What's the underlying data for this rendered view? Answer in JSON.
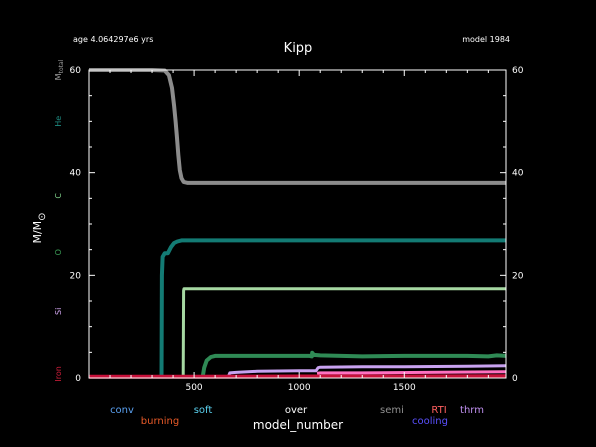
{
  "header": {
    "age_label": "age 4.064297e6 yrs",
    "model_label": "model 1984"
  },
  "chart_data": {
    "type": "line",
    "title": "Kipp",
    "xlabel": "model_number",
    "ylabel": "M/M",
    "ylabel_symbol": "⊙",
    "xlim": [
      0,
      1984
    ],
    "ylim": [
      0,
      60
    ],
    "x_ticks": [
      500,
      1000,
      1500
    ],
    "y_ticks": [
      0,
      20,
      40,
      60
    ],
    "grid": false,
    "left_markers": [
      {
        "text": "M",
        "sub": "total",
        "y": 60,
        "color": "#a0a0a0"
      },
      {
        "text": "He",
        "y": 50,
        "color": "#1e8a80"
      },
      {
        "text": "C",
        "y": 35.5,
        "color": "#7fd08a"
      },
      {
        "text": "O",
        "y": 24.5,
        "color": "#3a9a55"
      },
      {
        "text": "Si",
        "y": 13,
        "color": "#d2a6f0"
      },
      {
        "text": "Iron",
        "y": 0.8,
        "color": "#d41e3c"
      }
    ],
    "series": [
      {
        "key": "total_mass",
        "color": "#8c8c8c",
        "width": 4,
        "x": [
          0,
          300,
          360,
          380,
          395,
          405,
          412,
          418,
          425,
          432,
          440,
          450,
          470,
          520,
          1000,
          1500,
          1984
        ],
        "y": [
          60,
          60,
          59.9,
          59,
          56.5,
          53,
          50,
          47,
          43.5,
          40.5,
          38.9,
          38.2,
          38,
          38,
          38,
          38,
          38
        ]
      },
      {
        "key": "he_core",
        "color": "#137b74",
        "width": 4,
        "x": [
          345,
          347,
          350,
          360,
          375,
          390,
          405,
          420,
          440,
          500,
          1000,
          1500,
          1984
        ],
        "y": [
          0,
          20,
          23.6,
          24.3,
          24.3,
          25.5,
          26.3,
          26.6,
          26.8,
          26.8,
          26.8,
          26.8,
          26.8
        ]
      },
      {
        "key": "c_core",
        "color": "#a6d8a2",
        "width": 3,
        "x": [
          448,
          450,
          452,
          500,
          1000,
          1500,
          1984
        ],
        "y": [
          0,
          17,
          17.4,
          17.4,
          17.4,
          17.4,
          17.4
        ]
      },
      {
        "key": "o_core",
        "color": "#2f8a55",
        "width": 4,
        "x": [
          540,
          548,
          560,
          580,
          600,
          700,
          900,
          1050,
          1060,
          1062,
          1070,
          1100,
          1300,
          1500,
          1700,
          1800,
          1900,
          1940,
          1984
        ],
        "y": [
          0,
          2.0,
          3.4,
          4.1,
          4.3,
          4.3,
          4.3,
          4.3,
          4.2,
          4.9,
          4.5,
          4.4,
          4.2,
          4.3,
          4.3,
          4.3,
          4.2,
          4.4,
          4.3
        ]
      },
      {
        "key": "si_core",
        "color": "#c8a2f0",
        "width": 3,
        "x": [
          665,
          670,
          700,
          800,
          1000,
          1080,
          1090,
          1100,
          1300,
          1500,
          1800,
          1984
        ],
        "y": [
          0.5,
          1.0,
          1.1,
          1.3,
          1.4,
          1.4,
          2.0,
          2.1,
          2.2,
          2.2,
          2.3,
          2.4
        ]
      },
      {
        "key": "semi_pink",
        "color": "#ff70c0",
        "width": 3,
        "x": [
          1085,
          1100,
          1300,
          1600,
          1984
        ],
        "y": [
          0.9,
          1.0,
          1.0,
          1.1,
          1.2
        ]
      },
      {
        "key": "iron_core",
        "color": "#c8103a",
        "width": 4,
        "x": [
          0,
          500,
          1000,
          1500,
          1984
        ],
        "y": [
          0.25,
          0.25,
          0.3,
          0.3,
          0.35
        ]
      }
    ],
    "legend": [
      {
        "text": "conv",
        "color": "#5aa0f0",
        "row": 0
      },
      {
        "text": "burning",
        "color": "#e85a28",
        "row": 1
      },
      {
        "text": "soft",
        "color": "#5ad0ee",
        "row": 0
      },
      {
        "text": "over",
        "color": "#ffffff",
        "row": 0
      },
      {
        "text": "semi",
        "color": "#909090",
        "row": 0
      },
      {
        "text": "RTI",
        "color": "#ff6060",
        "row": 0
      },
      {
        "text": "cooling",
        "color": "#5a50ff",
        "row": 1
      },
      {
        "text": "thrm",
        "color": "#c090f0",
        "row": 0
      }
    ]
  }
}
